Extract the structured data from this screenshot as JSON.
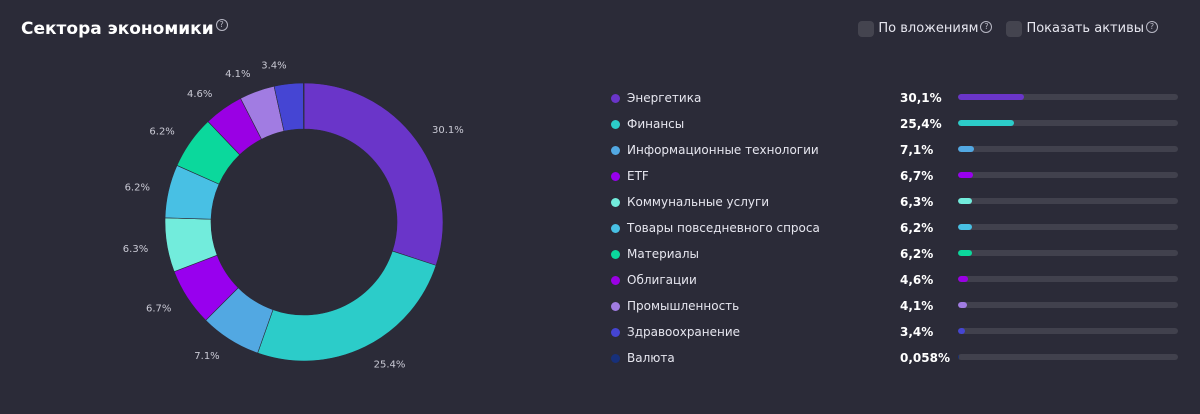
{
  "header": {
    "title": "Сектора экономики",
    "help": "?"
  },
  "options": [
    {
      "label": "По вложениям",
      "checked": false
    },
    {
      "label": "Показать активы",
      "checked": false
    }
  ],
  "chart_data": {
    "type": "pie",
    "categories": [
      "Энергетика",
      "Финансы",
      "Информационные технологии",
      "ETF",
      "Коммунальные услуги",
      "Товары повседневного спроса",
      "Материалы",
      "Облигации",
      "Промышленность",
      "Здравоохранение",
      "Валюта"
    ],
    "values": [
      30.1,
      25.4,
      7.1,
      6.7,
      6.3,
      6.2,
      6.2,
      4.6,
      4.1,
      3.4,
      0.058
    ],
    "slice_labels": [
      "30.1%",
      "25.4%",
      "7.1%",
      "6.7%",
      "6.3%",
      "6.2%",
      "6.2%",
      "4.6%",
      "4.1%",
      "3.4%",
      ""
    ],
    "legend_values": [
      "30,1%",
      "25,4%",
      "7,1%",
      "6,7%",
      "6,3%",
      "6,2%",
      "6,2%",
      "4,6%",
      "4,1%",
      "3,4%",
      "0,058%"
    ],
    "colors": [
      "#6a35c9",
      "#2cccc9",
      "#52a8e2",
      "#9800ee",
      "#72ecdc",
      "#48c0e4",
      "#0bd89c",
      "#9a00e4",
      "#a17ce2",
      "#4545d3",
      "#17307a"
    ],
    "legend_placement": "right",
    "donut": true
  }
}
